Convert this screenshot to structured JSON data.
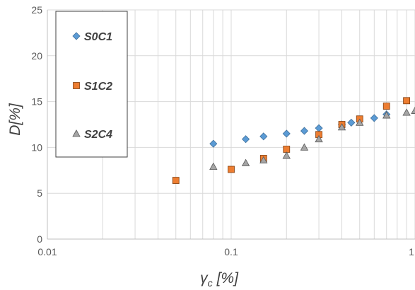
{
  "chart_data": {
    "type": "scatter",
    "title": "",
    "xlabel": "γ",
    "xlabel_subscript": "c",
    "xlabel_unit": "[%]",
    "ylabel": "D[%]",
    "x_scale": "log",
    "xlim": [
      0.01,
      1
    ],
    "ylim": [
      0,
      25
    ],
    "x_ticks": [
      0.01,
      0.1,
      1
    ],
    "x_tick_labels": [
      "0.01",
      "0.1",
      "1"
    ],
    "y_ticks": [
      0,
      5,
      10,
      15,
      20,
      25
    ],
    "y_tick_labels": [
      "0",
      "5",
      "10",
      "15",
      "20",
      "25"
    ],
    "grid": true,
    "legend_position": "top-left",
    "series": [
      {
        "name": "S0C1",
        "marker": "diamond",
        "color": "#5B9BD5",
        "x": [
          0.08,
          0.12,
          0.15,
          0.2,
          0.25,
          0.3,
          0.4,
          0.45,
          0.6,
          0.7
        ],
        "y": [
          10.4,
          10.9,
          11.2,
          11.5,
          11.8,
          12.1,
          12.5,
          12.7,
          13.2,
          13.6
        ]
      },
      {
        "name": "S1C2",
        "marker": "square",
        "color": "#ED7D31",
        "x": [
          0.05,
          0.1,
          0.15,
          0.2,
          0.3,
          0.4,
          0.5,
          0.7,
          0.9
        ],
        "y": [
          6.4,
          7.6,
          8.8,
          9.8,
          11.4,
          12.5,
          13.1,
          14.5,
          15.1
        ]
      },
      {
        "name": "S2C4",
        "marker": "triangle",
        "color": "#A5A5A5",
        "x": [
          0.08,
          0.12,
          0.15,
          0.2,
          0.25,
          0.3,
          0.4,
          0.5,
          0.7,
          0.9,
          1.0
        ],
        "y": [
          7.9,
          8.3,
          8.6,
          9.1,
          10.0,
          10.9,
          12.2,
          12.7,
          13.5,
          13.8,
          14.0
        ]
      }
    ]
  }
}
